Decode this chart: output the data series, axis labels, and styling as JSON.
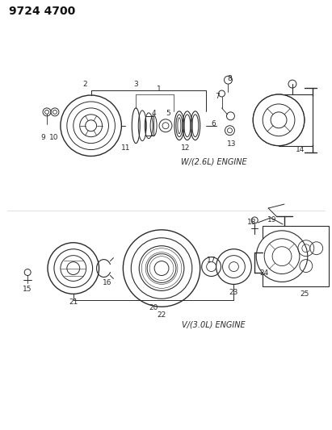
{
  "title": "9724 4700",
  "bg_color": "#ffffff",
  "line_color": "#2a2a2a",
  "title_fontsize": 10,
  "label_fontsize": 6.5,
  "engine1_label": "W/(2.6L) ENGINE",
  "engine2_label": "V/(3.0L) ENGINE",
  "figsize": [
    4.11,
    5.33
  ],
  "dpi": 100
}
